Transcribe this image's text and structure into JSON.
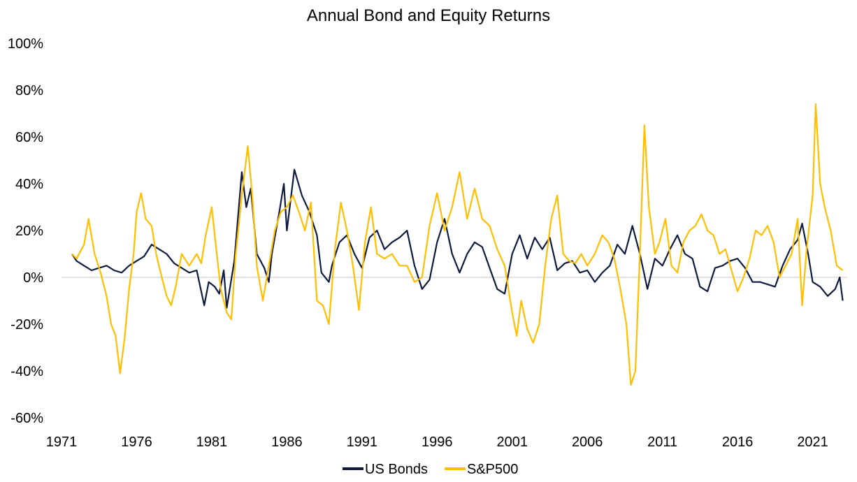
{
  "chart_data": {
    "type": "line",
    "title": "Annual Bond and Equity Returns",
    "xlabel": "",
    "ylabel": "",
    "xlim": [
      1971,
      2023.3
    ],
    "ylim": [
      -0.6,
      1.0
    ],
    "x_ticks": [
      1971,
      1976,
      1981,
      1986,
      1991,
      1996,
      2001,
      2006,
      2011,
      2016,
      2021
    ],
    "x_tick_labels": [
      "1971",
      "1976",
      "1981",
      "1986",
      "1991",
      "1996",
      "2001",
      "2006",
      "2011",
      "2016",
      "2021"
    ],
    "y_ticks": [
      -0.6,
      -0.4,
      -0.2,
      0,
      0.2,
      0.4,
      0.6,
      0.8,
      1.0
    ],
    "y_tick_labels": [
      "-60%",
      "-40%",
      "-20%",
      "0%",
      "20%",
      "40%",
      "60%",
      "80%",
      "100%"
    ],
    "grid": false,
    "zero_line": true,
    "legend_position": "bottom",
    "series": [
      {
        "name": "US Bonds",
        "color": "#0f1b3d",
        "points": [
          [
            1971.7,
            0.1
          ],
          [
            1972.0,
            0.07
          ],
          [
            1972.5,
            0.05
          ],
          [
            1973.0,
            0.03
          ],
          [
            1973.5,
            0.04
          ],
          [
            1974.0,
            0.05
          ],
          [
            1974.5,
            0.03
          ],
          [
            1975.0,
            0.02
          ],
          [
            1975.5,
            0.05
          ],
          [
            1976.0,
            0.07
          ],
          [
            1976.5,
            0.09
          ],
          [
            1977.0,
            0.14
          ],
          [
            1977.5,
            0.12
          ],
          [
            1978.0,
            0.1
          ],
          [
            1978.5,
            0.06
          ],
          [
            1979.0,
            0.04
          ],
          [
            1979.5,
            0.02
          ],
          [
            1980.0,
            0.03
          ],
          [
            1980.5,
            -0.12
          ],
          [
            1980.8,
            -0.02
          ],
          [
            1981.2,
            -0.04
          ],
          [
            1981.5,
            -0.07
          ],
          [
            1981.8,
            0.03
          ],
          [
            1982.0,
            -0.13
          ],
          [
            1982.5,
            0.07
          ],
          [
            1983.0,
            0.45
          ],
          [
            1983.3,
            0.3
          ],
          [
            1983.6,
            0.38
          ],
          [
            1984.0,
            0.1
          ],
          [
            1984.5,
            0.04
          ],
          [
            1984.8,
            -0.02
          ],
          [
            1985.0,
            0.1
          ],
          [
            1985.5,
            0.28
          ],
          [
            1985.8,
            0.4
          ],
          [
            1986.0,
            0.2
          ],
          [
            1986.5,
            0.46
          ],
          [
            1987.0,
            0.35
          ],
          [
            1987.5,
            0.28
          ],
          [
            1988.0,
            0.18
          ],
          [
            1988.3,
            0.02
          ],
          [
            1988.8,
            -0.02
          ],
          [
            1989.0,
            0.05
          ],
          [
            1989.5,
            0.15
          ],
          [
            1990.0,
            0.18
          ],
          [
            1990.5,
            0.1
          ],
          [
            1991.0,
            0.04
          ],
          [
            1991.5,
            0.17
          ],
          [
            1992.0,
            0.2
          ],
          [
            1992.5,
            0.12
          ],
          [
            1993.0,
            0.15
          ],
          [
            1993.5,
            0.17
          ],
          [
            1994.0,
            0.2
          ],
          [
            1994.5,
            0.05
          ],
          [
            1995.0,
            -0.05
          ],
          [
            1995.5,
            -0.01
          ],
          [
            1996.0,
            0.15
          ],
          [
            1996.5,
            0.25
          ],
          [
            1997.0,
            0.1
          ],
          [
            1997.5,
            0.02
          ],
          [
            1998.0,
            0.1
          ],
          [
            1998.5,
            0.15
          ],
          [
            1999.0,
            0.13
          ],
          [
            1999.5,
            0.04
          ],
          [
            2000.0,
            -0.05
          ],
          [
            2000.5,
            -0.07
          ],
          [
            2001.0,
            0.1
          ],
          [
            2001.5,
            0.18
          ],
          [
            2002.0,
            0.08
          ],
          [
            2002.5,
            0.17
          ],
          [
            2003.0,
            0.12
          ],
          [
            2003.5,
            0.17
          ],
          [
            2004.0,
            0.03
          ],
          [
            2004.5,
            0.06
          ],
          [
            2005.0,
            0.07
          ],
          [
            2005.5,
            0.02
          ],
          [
            2006.0,
            0.03
          ],
          [
            2006.5,
            -0.02
          ],
          [
            2007.0,
            0.02
          ],
          [
            2007.5,
            0.05
          ],
          [
            2008.0,
            0.14
          ],
          [
            2008.5,
            0.1
          ],
          [
            2009.0,
            0.22
          ],
          [
            2009.5,
            0.1
          ],
          [
            2010.0,
            -0.05
          ],
          [
            2010.5,
            0.08
          ],
          [
            2011.0,
            0.05
          ],
          [
            2011.5,
            0.12
          ],
          [
            2012.0,
            0.18
          ],
          [
            2012.5,
            0.1
          ],
          [
            2013.0,
            0.08
          ],
          [
            2013.5,
            -0.04
          ],
          [
            2014.0,
            -0.06
          ],
          [
            2014.5,
            0.04
          ],
          [
            2015.0,
            0.05
          ],
          [
            2015.5,
            0.07
          ],
          [
            2016.0,
            0.08
          ],
          [
            2016.5,
            0.04
          ],
          [
            2017.0,
            -0.02
          ],
          [
            2017.5,
            -0.02
          ],
          [
            2018.0,
            -0.03
          ],
          [
            2018.5,
            -0.04
          ],
          [
            2019.0,
            0.05
          ],
          [
            2019.5,
            0.12
          ],
          [
            2020.0,
            0.16
          ],
          [
            2020.3,
            0.23
          ],
          [
            2020.7,
            0.1
          ],
          [
            2021.0,
            -0.02
          ],
          [
            2021.5,
            -0.04
          ],
          [
            2022.0,
            -0.08
          ],
          [
            2022.5,
            -0.05
          ],
          [
            2022.8,
            0.0
          ],
          [
            2023.0,
            -0.1
          ]
        ]
      },
      {
        "name": "S&P500",
        "color": "#ffbf00",
        "points": [
          [
            1971.7,
            0.1
          ],
          [
            1972.0,
            0.08
          ],
          [
            1972.5,
            0.14
          ],
          [
            1972.8,
            0.25
          ],
          [
            1973.2,
            0.1
          ],
          [
            1973.6,
            0.02
          ],
          [
            1974.0,
            -0.08
          ],
          [
            1974.3,
            -0.2
          ],
          [
            1974.6,
            -0.25
          ],
          [
            1974.9,
            -0.41
          ],
          [
            1975.2,
            -0.26
          ],
          [
            1975.5,
            -0.05
          ],
          [
            1975.8,
            0.1
          ],
          [
            1976.0,
            0.28
          ],
          [
            1976.3,
            0.36
          ],
          [
            1976.6,
            0.25
          ],
          [
            1977.0,
            0.22
          ],
          [
            1977.3,
            0.1
          ],
          [
            1977.6,
            0.02
          ],
          [
            1978.0,
            -0.08
          ],
          [
            1978.3,
            -0.12
          ],
          [
            1978.6,
            -0.04
          ],
          [
            1979.0,
            0.1
          ],
          [
            1979.5,
            0.05
          ],
          [
            1980.0,
            0.1
          ],
          [
            1980.3,
            0.06
          ],
          [
            1980.6,
            0.18
          ],
          [
            1981.0,
            0.3
          ],
          [
            1981.3,
            0.12
          ],
          [
            1981.6,
            -0.05
          ],
          [
            1982.0,
            -0.15
          ],
          [
            1982.3,
            -0.18
          ],
          [
            1982.6,
            0.1
          ],
          [
            1983.0,
            0.35
          ],
          [
            1983.4,
            0.56
          ],
          [
            1983.7,
            0.35
          ],
          [
            1984.0,
            0.05
          ],
          [
            1984.4,
            -0.1
          ],
          [
            1984.8,
            0.05
          ],
          [
            1985.2,
            0.2
          ],
          [
            1985.6,
            0.28
          ],
          [
            1986.0,
            0.3
          ],
          [
            1986.4,
            0.35
          ],
          [
            1986.8,
            0.28
          ],
          [
            1987.2,
            0.2
          ],
          [
            1987.6,
            0.32
          ],
          [
            1988.0,
            -0.1
          ],
          [
            1988.4,
            -0.12
          ],
          [
            1988.8,
            -0.2
          ],
          [
            1989.2,
            0.12
          ],
          [
            1989.6,
            0.32
          ],
          [
            1990.0,
            0.2
          ],
          [
            1990.4,
            0.05
          ],
          [
            1990.8,
            -0.14
          ],
          [
            1991.2,
            0.15
          ],
          [
            1991.6,
            0.3
          ],
          [
            1992.0,
            0.1
          ],
          [
            1992.5,
            0.08
          ],
          [
            1993.0,
            0.1
          ],
          [
            1993.5,
            0.05
          ],
          [
            1994.0,
            0.05
          ],
          [
            1994.5,
            -0.02
          ],
          [
            1995.0,
            0.0
          ],
          [
            1995.5,
            0.22
          ],
          [
            1996.0,
            0.36
          ],
          [
            1996.5,
            0.2
          ],
          [
            1997.0,
            0.3
          ],
          [
            1997.5,
            0.45
          ],
          [
            1998.0,
            0.25
          ],
          [
            1998.5,
            0.38
          ],
          [
            1999.0,
            0.25
          ],
          [
            1999.5,
            0.22
          ],
          [
            2000.0,
            0.12
          ],
          [
            2000.5,
            0.05
          ],
          [
            2001.0,
            -0.15
          ],
          [
            2001.3,
            -0.25
          ],
          [
            2001.6,
            -0.1
          ],
          [
            2002.0,
            -0.22
          ],
          [
            2002.4,
            -0.28
          ],
          [
            2002.8,
            -0.2
          ],
          [
            2003.2,
            0.05
          ],
          [
            2003.6,
            0.25
          ],
          [
            2004.0,
            0.35
          ],
          [
            2004.4,
            0.1
          ],
          [
            2004.8,
            0.07
          ],
          [
            2005.2,
            0.06
          ],
          [
            2005.6,
            0.1
          ],
          [
            2006.0,
            0.05
          ],
          [
            2006.5,
            0.1
          ],
          [
            2007.0,
            0.18
          ],
          [
            2007.4,
            0.15
          ],
          [
            2007.8,
            0.08
          ],
          [
            2008.2,
            -0.05
          ],
          [
            2008.6,
            -0.2
          ],
          [
            2008.9,
            -0.46
          ],
          [
            2009.2,
            -0.4
          ],
          [
            2009.5,
            0.1
          ],
          [
            2009.8,
            0.65
          ],
          [
            2010.1,
            0.3
          ],
          [
            2010.5,
            0.1
          ],
          [
            2010.8,
            0.15
          ],
          [
            2011.2,
            0.25
          ],
          [
            2011.6,
            0.05
          ],
          [
            2012.0,
            0.02
          ],
          [
            2012.4,
            0.15
          ],
          [
            2012.8,
            0.2
          ],
          [
            2013.2,
            0.22
          ],
          [
            2013.6,
            0.27
          ],
          [
            2014.0,
            0.2
          ],
          [
            2014.4,
            0.18
          ],
          [
            2014.8,
            0.1
          ],
          [
            2015.2,
            0.12
          ],
          [
            2015.6,
            0.03
          ],
          [
            2016.0,
            -0.06
          ],
          [
            2016.4,
            0.0
          ],
          [
            2016.8,
            0.08
          ],
          [
            2017.2,
            0.2
          ],
          [
            2017.6,
            0.18
          ],
          [
            2018.0,
            0.22
          ],
          [
            2018.4,
            0.15
          ],
          [
            2018.8,
            0.0
          ],
          [
            2019.2,
            0.05
          ],
          [
            2019.6,
            0.1
          ],
          [
            2020.0,
            0.25
          ],
          [
            2020.3,
            -0.12
          ],
          [
            2020.6,
            0.12
          ],
          [
            2021.0,
            0.35
          ],
          [
            2021.2,
            0.74
          ],
          [
            2021.5,
            0.4
          ],
          [
            2021.8,
            0.3
          ],
          [
            2022.2,
            0.2
          ],
          [
            2022.6,
            0.05
          ],
          [
            2023.0,
            0.03
          ]
        ]
      }
    ]
  }
}
